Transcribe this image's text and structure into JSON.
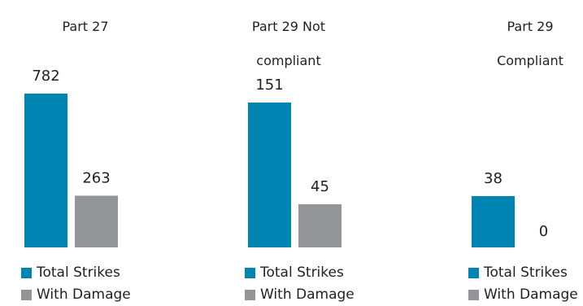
{
  "colors": {
    "total": "#0085b3",
    "damage": "#949599",
    "text": "#231f20"
  },
  "chart_data": [
    {
      "type": "bar",
      "title": "Part 27",
      "categories": [
        "Total Strikes",
        "With Damage"
      ],
      "values": [
        782,
        263
      ],
      "labels": [
        "782",
        "263"
      ],
      "legend": [
        "Total Strikes",
        "With Damage"
      ]
    },
    {
      "type": "bar",
      "title": "Part 29 Not\ncompliant",
      "categories": [
        "Total Strikes",
        "With Damage"
      ],
      "values": [
        151,
        45
      ],
      "labels": [
        "151",
        "45"
      ],
      "legend": [
        "Total Strikes",
        "With Damage"
      ]
    },
    {
      "type": "bar",
      "title": "Part 29\nCompliant",
      "categories": [
        "Total Strikes",
        "With Damage"
      ],
      "values": [
        38,
        0
      ],
      "labels": [
        "38",
        "0"
      ],
      "legend": [
        "Total Strikes",
        "With Damage"
      ]
    }
  ]
}
